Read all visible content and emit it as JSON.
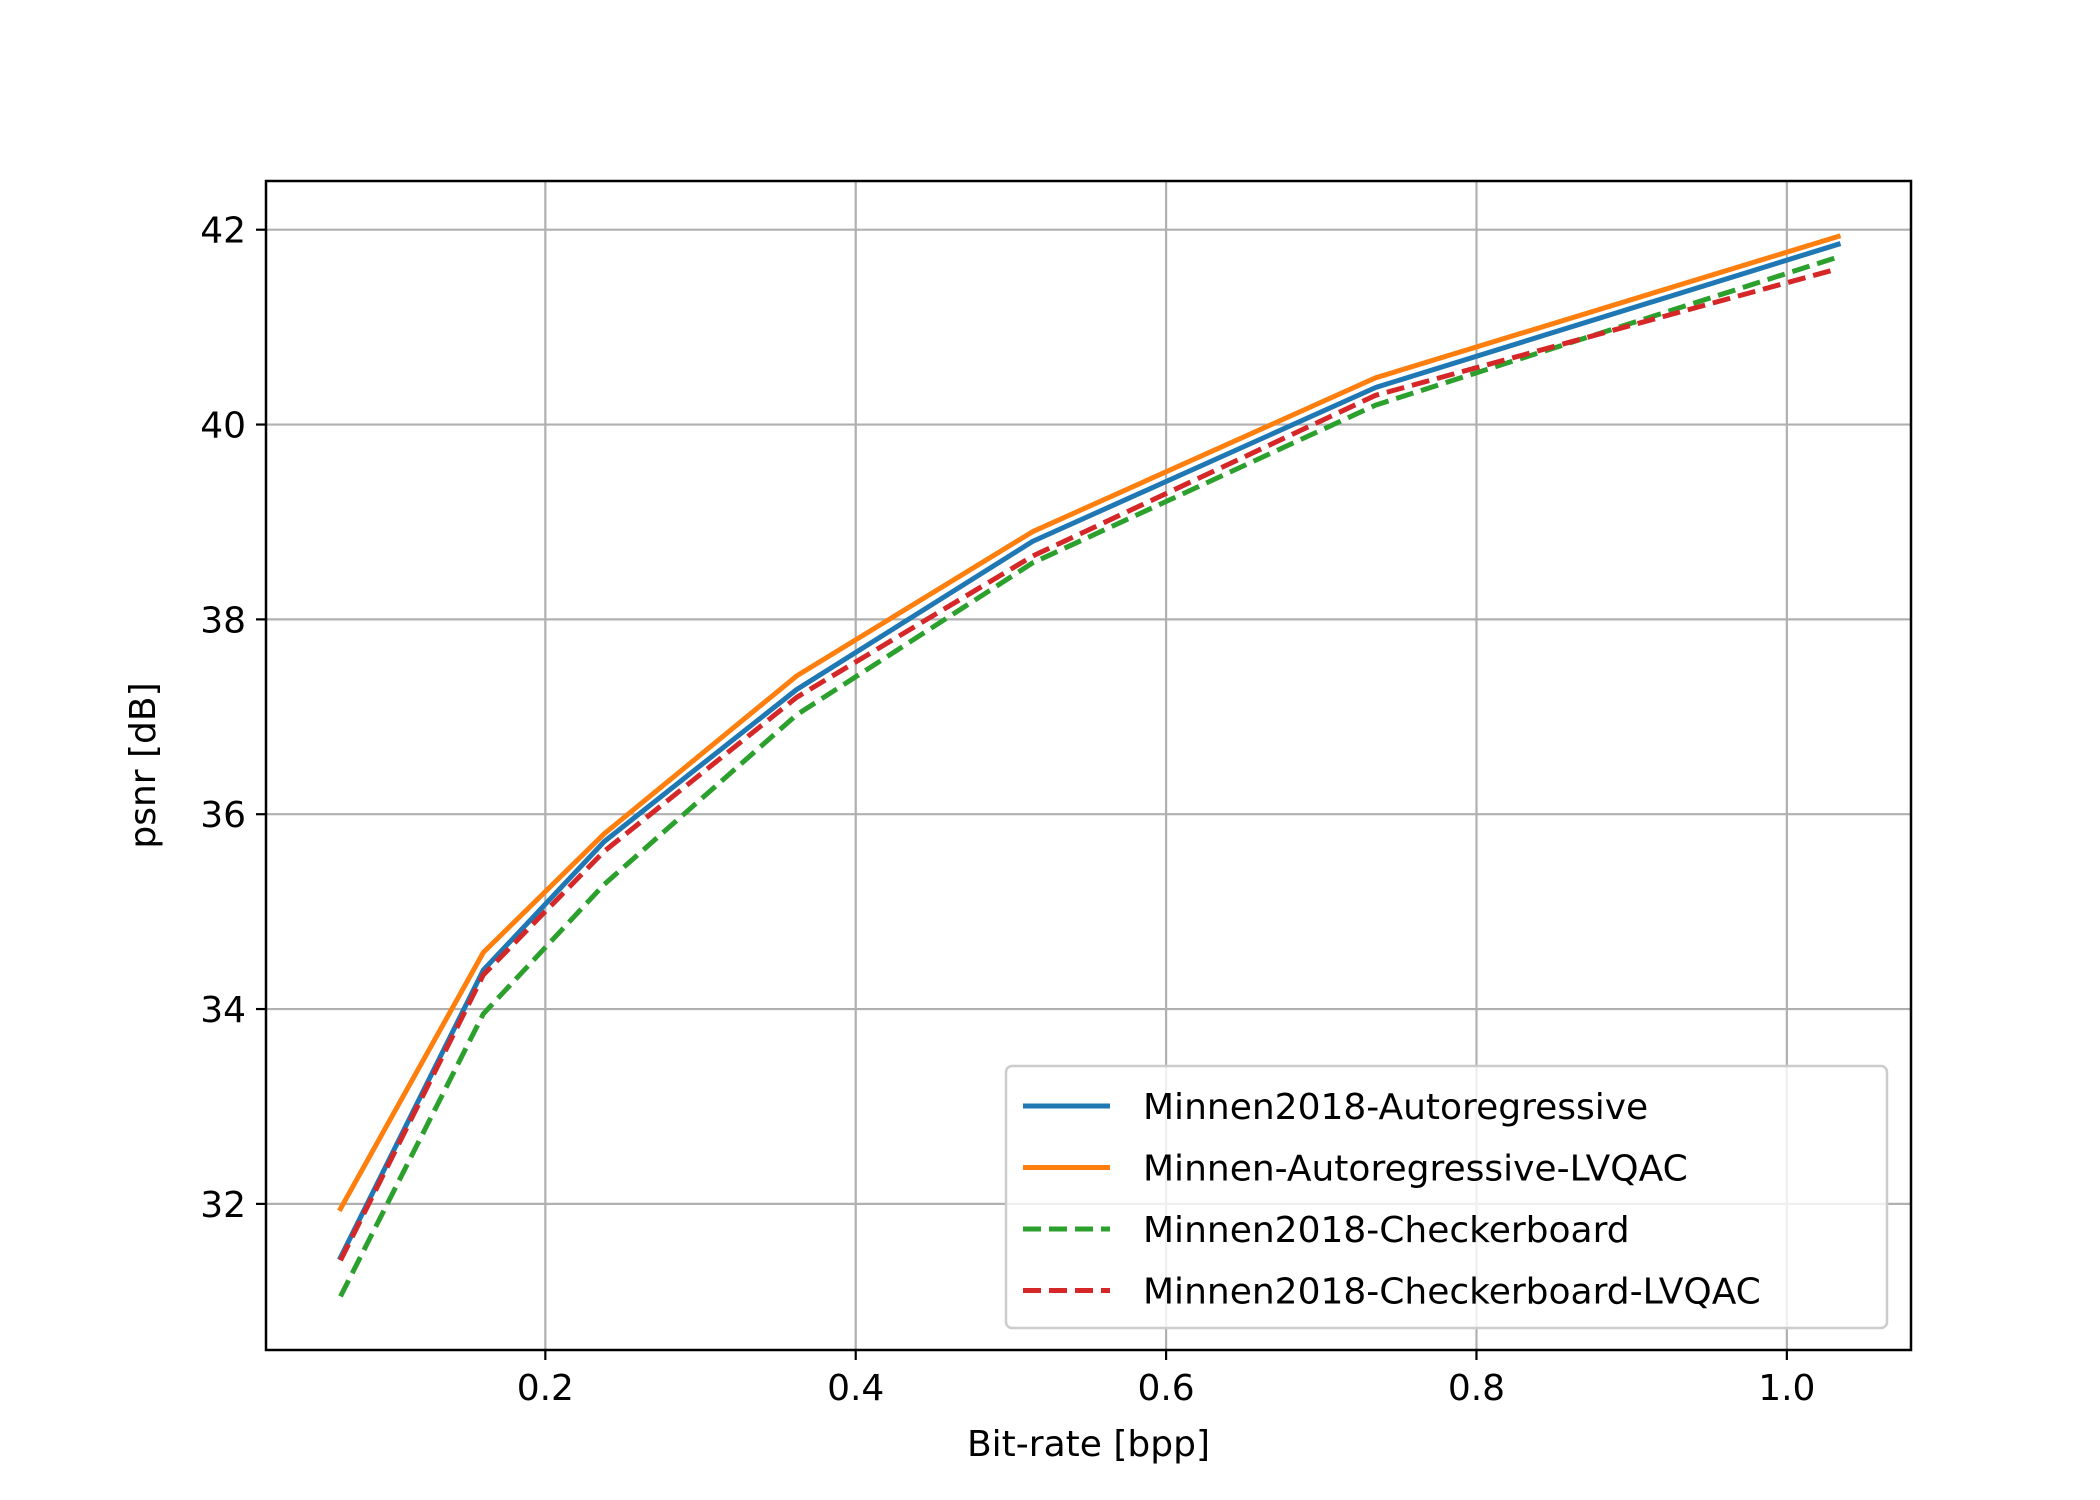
{
  "chart_data": {
    "type": "line",
    "title": "",
    "xlabel": "Bit-rate [bpp]",
    "ylabel": "psnr [dB]",
    "xlim": [
      0.02,
      1.08
    ],
    "ylim": [
      30.5,
      42.5
    ],
    "xticks": [
      0.2,
      0.4,
      0.6,
      0.8,
      1.0
    ],
    "xtick_labels": [
      "0.2",
      "0.4",
      "0.6",
      "0.8",
      "1.0"
    ],
    "yticks": [
      32,
      34,
      36,
      38,
      40,
      42
    ],
    "ytick_labels": [
      "32",
      "34",
      "36",
      "38",
      "40",
      "42"
    ],
    "grid": true,
    "legend_position": "lower-right",
    "series": [
      {
        "name": "Minnen2018-Autoregressive",
        "color": "#1f77b4",
        "dash": "solid",
        "x": [
          0.068,
          0.16,
          0.238,
          0.362,
          0.514,
          0.735,
          1.033
        ],
        "y": [
          31.45,
          34.4,
          35.72,
          37.28,
          38.8,
          40.38,
          41.85
        ]
      },
      {
        "name": "Minnen-Autoregressive-LVQAC",
        "color": "#ff7f0e",
        "dash": "solid",
        "x": [
          0.068,
          0.16,
          0.238,
          0.362,
          0.514,
          0.735,
          1.033
        ],
        "y": [
          31.95,
          34.58,
          35.8,
          37.42,
          38.9,
          40.48,
          41.93
        ]
      },
      {
        "name": "Minnen2018-Checkerboard",
        "color": "#2ca02c",
        "dash": "dashed",
        "x": [
          0.068,
          0.16,
          0.238,
          0.362,
          0.514,
          0.735,
          1.033
        ],
        "y": [
          31.05,
          33.95,
          35.28,
          37.02,
          38.58,
          40.2,
          41.72
        ]
      },
      {
        "name": "Minnen2018-Checkerboard-LVQAC",
        "color": "#d62728",
        "dash": "dashed",
        "x": [
          0.068,
          0.16,
          0.238,
          0.362,
          0.514,
          0.735,
          1.033
        ],
        "y": [
          31.42,
          34.35,
          35.62,
          37.2,
          38.65,
          40.3,
          41.6
        ]
      }
    ]
  }
}
